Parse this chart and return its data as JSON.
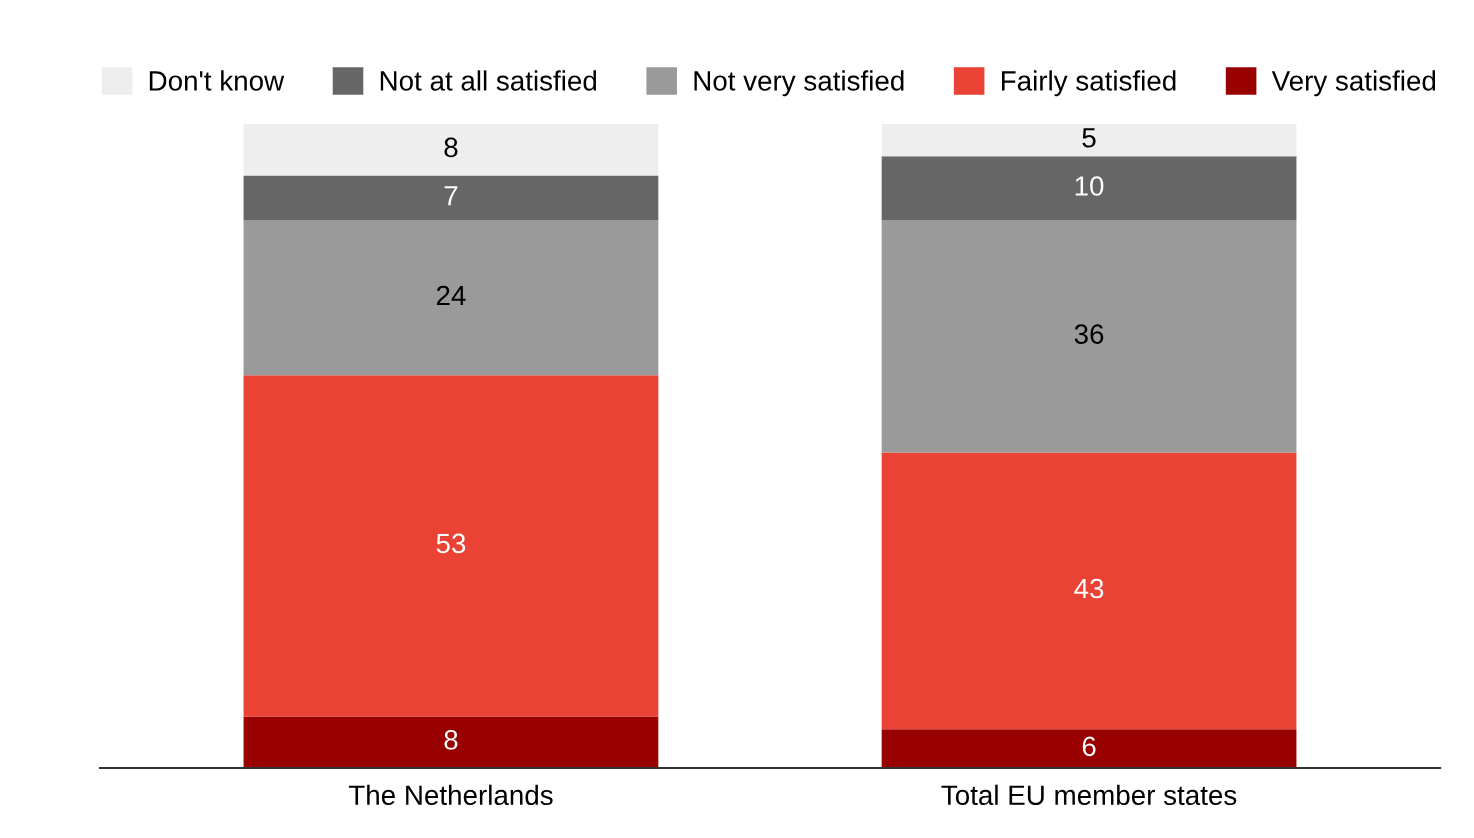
{
  "chart_data": {
    "type": "bar",
    "stacked": true,
    "data_labels": true,
    "legend": "top",
    "grid": false,
    "categories": [
      "The Netherlands",
      "Total EU member states"
    ],
    "series": [
      {
        "name": "Very satisfied",
        "color": "#990000",
        "values": [
          8,
          6
        ]
      },
      {
        "name": "Fairly satisfied",
        "color": "#ea4335",
        "values": [
          53,
          43
        ]
      },
      {
        "name": "Not very satisfied",
        "color": "#9a9a9a",
        "values": [
          24,
          36
        ]
      },
      {
        "name": "Not at all satisfied",
        "color": "#666666",
        "values": [
          7,
          10
        ]
      },
      {
        "name": "Don't know",
        "color": "#eeeeee",
        "values": [
          8,
          5
        ]
      }
    ]
  }
}
